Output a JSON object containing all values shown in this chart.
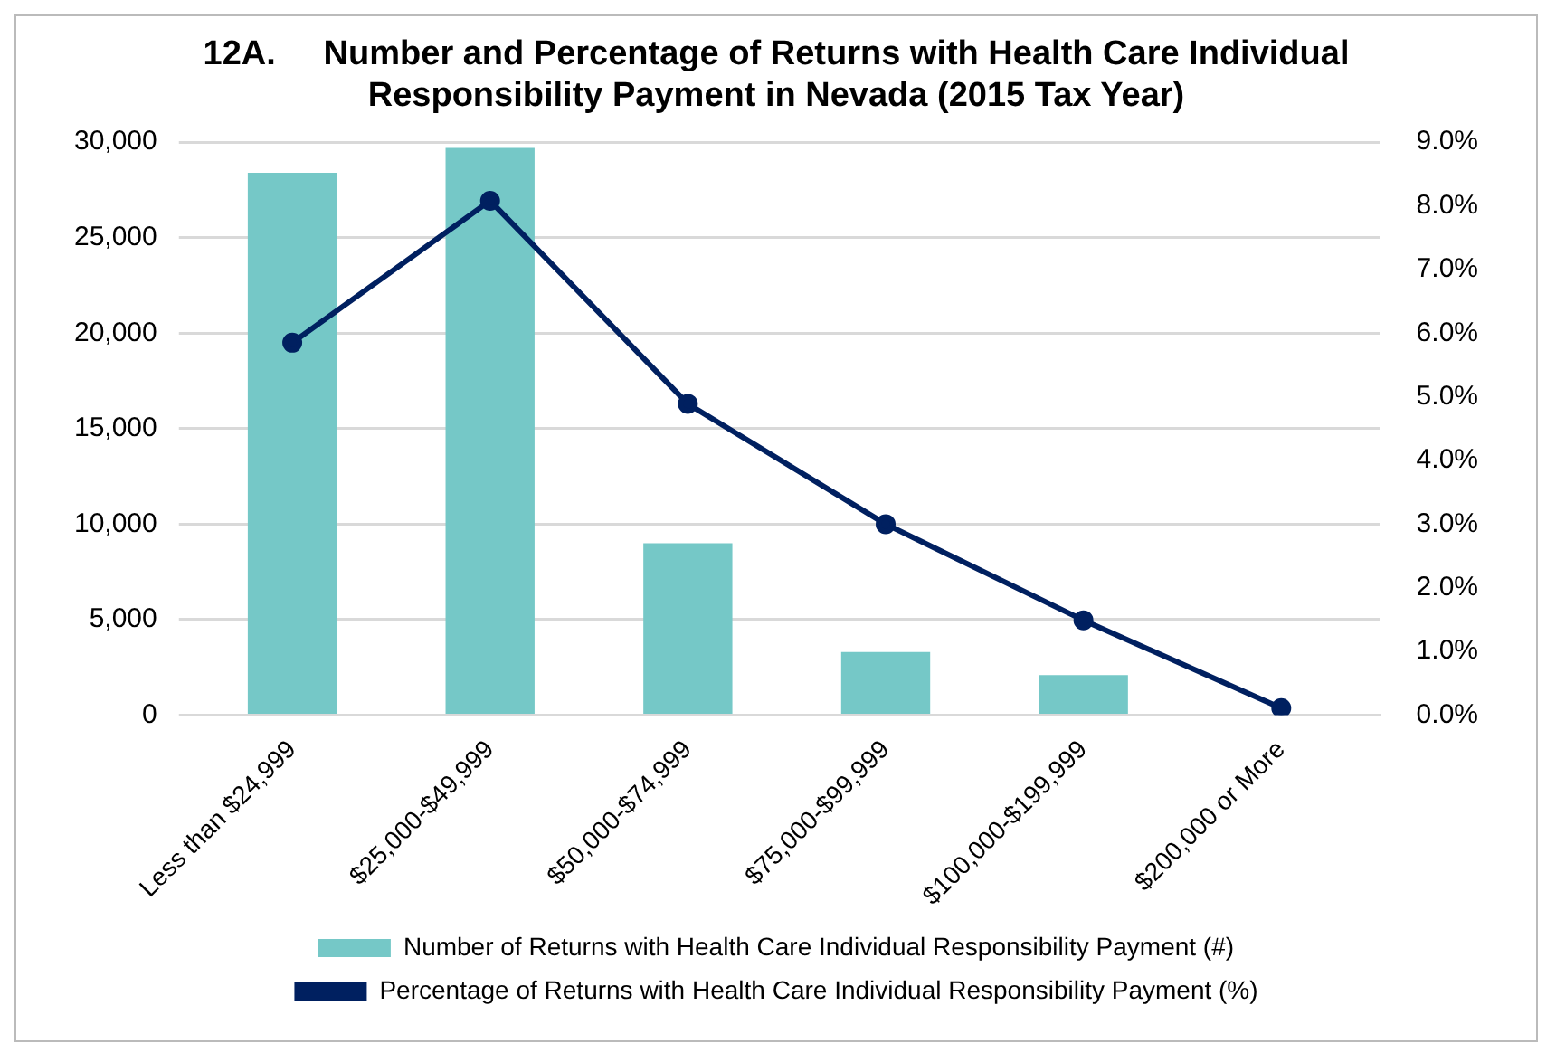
{
  "chart_data": {
    "type": "bar",
    "title": "12A.     Number and Percentage of Returns with Health Care Individual\nResponsibility Payment in Nevada (2015 Tax Year)",
    "categories": [
      "Less than $24,999",
      "$25,000-$49,999",
      "$50,000-$74,999",
      "$75,000-$99,999",
      "$100,000-$199,999",
      "$200,000 or More"
    ],
    "series": [
      {
        "name": "Number of Returns with Health Care Individual Responsibility Payment (#)",
        "color": "#75c8c7",
        "values": [
          28400,
          29700,
          9000,
          3300,
          2100,
          null
        ]
      },
      {
        "name": "Percentage of Returns with Health Care Individual Responsibility Payment (%)",
        "type": "line",
        "axis": "y2",
        "color": "#002060",
        "marker": "circle",
        "values": [
          5.85,
          8.08,
          4.89,
          3.0,
          1.49,
          0.11
        ]
      }
    ],
    "ylim": [
      0,
      30000
    ],
    "yticks": [
      {
        "value": 0,
        "label": "0"
      },
      {
        "value": 5000,
        "label": "5,000"
      },
      {
        "value": 10000,
        "label": "10,000"
      },
      {
        "value": 15000,
        "label": "15,000"
      },
      {
        "value": 20000,
        "label": "20,000"
      },
      {
        "value": 25000,
        "label": "25,000"
      },
      {
        "value": 30000,
        "label": "30,000"
      }
    ],
    "y2lim": [
      0,
      9
    ],
    "y2ticks": [
      {
        "value": 0,
        "label": "0.0%"
      },
      {
        "value": 1,
        "label": "1.0%"
      },
      {
        "value": 2,
        "label": "2.0%"
      },
      {
        "value": 3,
        "label": "3.0%"
      },
      {
        "value": 4,
        "label": "4.0%"
      },
      {
        "value": 5,
        "label": "5.0%"
      },
      {
        "value": 6,
        "label": "6.0%"
      },
      {
        "value": 7,
        "label": "7.0%"
      },
      {
        "value": 8,
        "label": "8.0%"
      },
      {
        "value": 9,
        "label": "9.0%"
      }
    ],
    "grid": "y",
    "legend": "bottom"
  }
}
